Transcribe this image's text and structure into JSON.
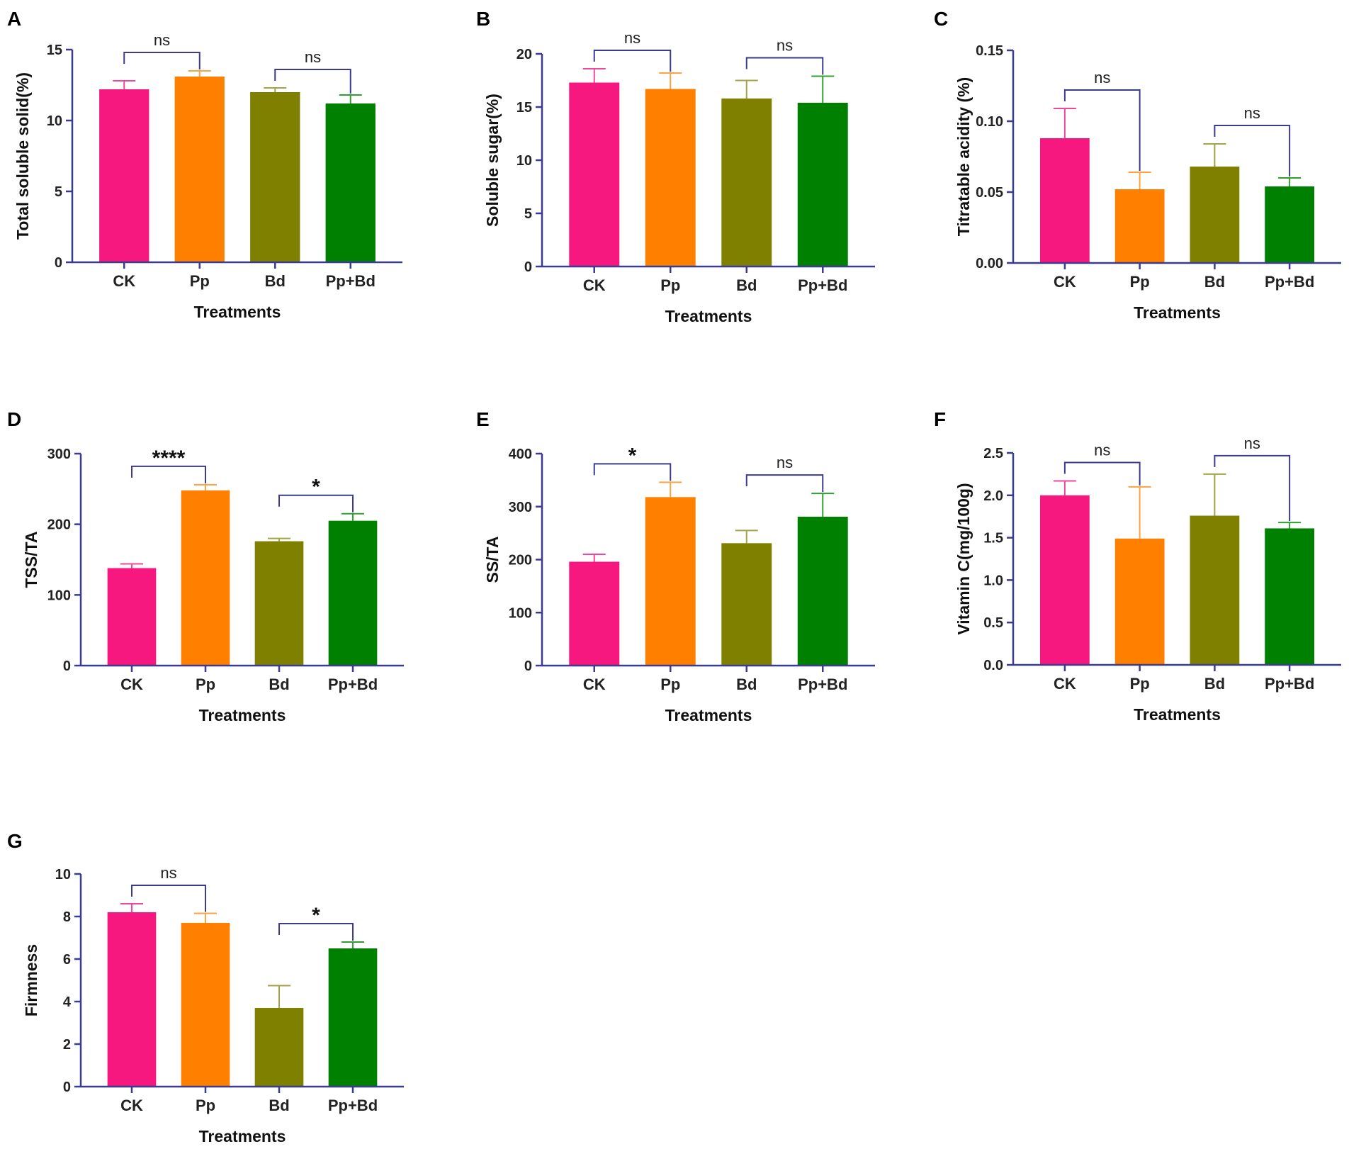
{
  "chart_data": [
    {
      "panel": "A",
      "type": "bar",
      "title": "",
      "xlabel": "Treatments",
      "ylabel": "Total soluble solid(%)",
      "categories": [
        "CK",
        "Pp",
        "Bd",
        "Pp+Bd"
      ],
      "values": [
        12.2,
        13.1,
        12.0,
        11.2
      ],
      "errors": [
        0.6,
        0.4,
        0.3,
        0.6
      ],
      "ylim": [
        0,
        15
      ],
      "yticks": [
        0,
        5,
        10,
        15
      ],
      "tick_labels": [
        "0",
        "5",
        "10",
        "15"
      ],
      "significance": [
        {
          "pair": [
            0,
            1
          ],
          "label": "ns"
        },
        {
          "pair": [
            2,
            3
          ],
          "label": "ns"
        }
      ]
    },
    {
      "panel": "B",
      "type": "bar",
      "title": "",
      "xlabel": "Treatments",
      "ylabel": "Soluble sugar(%)",
      "categories": [
        "CK",
        "Pp",
        "Bd",
        "Pp+Bd"
      ],
      "values": [
        17.3,
        16.7,
        15.8,
        15.4
      ],
      "errors": [
        1.3,
        1.5,
        1.7,
        2.5
      ],
      "ylim": [
        0,
        20
      ],
      "yticks": [
        0,
        5,
        10,
        15,
        20
      ],
      "tick_labels": [
        "0",
        "5",
        "10",
        "15",
        "20"
      ],
      "significance": [
        {
          "pair": [
            0,
            1
          ],
          "label": "ns"
        },
        {
          "pair": [
            2,
            3
          ],
          "label": "ns"
        }
      ]
    },
    {
      "panel": "C",
      "type": "bar",
      "title": "",
      "xlabel": "Treatments",
      "ylabel": "Titratable acidity (%)",
      "categories": [
        "CK",
        "Pp",
        "Bd",
        "Pp+Bd"
      ],
      "values": [
        0.088,
        0.052,
        0.068,
        0.054
      ],
      "errors": [
        0.021,
        0.012,
        0.016,
        0.006
      ],
      "ylim": [
        0,
        0.15
      ],
      "yticks": [
        0,
        0.05,
        0.1,
        0.15
      ],
      "tick_labels": [
        "0.00",
        "0.05",
        "0.10",
        "0.15"
      ],
      "significance": [
        {
          "pair": [
            0,
            1
          ],
          "label": "ns"
        },
        {
          "pair": [
            2,
            3
          ],
          "label": "ns"
        }
      ]
    },
    {
      "panel": "D",
      "type": "bar",
      "title": "",
      "xlabel": "Treatments",
      "ylabel": "TSS/TA",
      "categories": [
        "CK",
        "Pp",
        "Bd",
        "Pp+Bd"
      ],
      "values": [
        138,
        248,
        176,
        205
      ],
      "errors": [
        6,
        8,
        4,
        10
      ],
      "ylim": [
        0,
        300
      ],
      "yticks": [
        0,
        100,
        200,
        300
      ],
      "tick_labels": [
        "0",
        "100",
        "200",
        "300"
      ],
      "significance": [
        {
          "pair": [
            0,
            1
          ],
          "label": "****"
        },
        {
          "pair": [
            2,
            3
          ],
          "label": "*"
        }
      ]
    },
    {
      "panel": "E",
      "type": "bar",
      "title": "",
      "xlabel": "Treatments",
      "ylabel": "SS/TA",
      "categories": [
        "CK",
        "Pp",
        "Bd",
        "Pp+Bd"
      ],
      "values": [
        196,
        318,
        231,
        281
      ],
      "errors": [
        14,
        28,
        24,
        44
      ],
      "ylim": [
        0,
        400
      ],
      "yticks": [
        0,
        100,
        200,
        300,
        400
      ],
      "tick_labels": [
        "0",
        "100",
        "200",
        "300",
        "400"
      ],
      "significance": [
        {
          "pair": [
            0,
            1
          ],
          "label": "*"
        },
        {
          "pair": [
            2,
            3
          ],
          "label": "ns"
        }
      ]
    },
    {
      "panel": "F",
      "type": "bar",
      "title": "",
      "xlabel": "Treatments",
      "ylabel": "Vitamin C(mg/100g)",
      "categories": [
        "CK",
        "Pp",
        "Bd",
        "Pp+Bd"
      ],
      "values": [
        2.0,
        1.49,
        1.76,
        1.61
      ],
      "errors": [
        0.17,
        0.61,
        0.49,
        0.07
      ],
      "ylim": [
        0,
        2.5
      ],
      "yticks": [
        0,
        0.5,
        1.0,
        1.5,
        2.0,
        2.5
      ],
      "tick_labels": [
        "0.0",
        "0.5",
        "1.0",
        "1.5",
        "2.0",
        "2.5"
      ],
      "significance": [
        {
          "pair": [
            0,
            1
          ],
          "label": "ns"
        },
        {
          "pair": [
            2,
            3
          ],
          "label": "ns"
        }
      ]
    },
    {
      "panel": "G",
      "type": "bar",
      "title": "",
      "xlabel": "Treatments",
      "ylabel": "Firmness",
      "categories": [
        "CK",
        "Pp",
        "Bd",
        "Pp+Bd"
      ],
      "values": [
        8.2,
        7.7,
        3.7,
        6.5
      ],
      "errors": [
        0.4,
        0.45,
        1.05,
        0.3
      ],
      "ylim": [
        0,
        10
      ],
      "yticks": [
        0,
        2,
        4,
        6,
        8,
        10
      ],
      "tick_labels": [
        "0",
        "2",
        "4",
        "6",
        "8",
        "10"
      ],
      "significance": [
        {
          "pair": [
            0,
            1
          ],
          "label": "ns"
        },
        {
          "pair": [
            2,
            3
          ],
          "label": "*"
        }
      ]
    }
  ],
  "colors": {
    "bars": [
      "#f7187f",
      "#ff8000",
      "#808000",
      "#008000"
    ],
    "errors": [
      "#f0479a",
      "#ffa340",
      "#a3a347",
      "#30a030"
    ],
    "axis": "#3b3b8f",
    "bracket": "#3b3b8f"
  }
}
